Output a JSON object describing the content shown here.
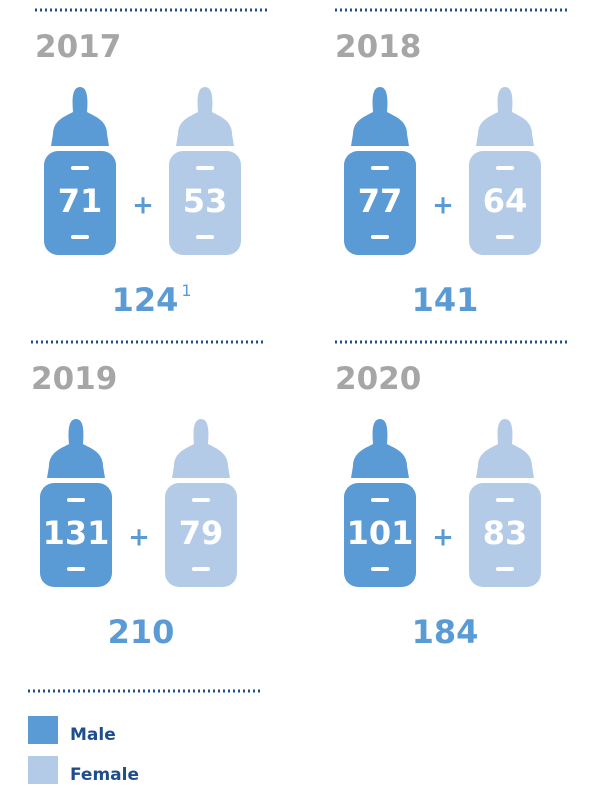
{
  "panels": [
    {
      "year": "2017",
      "male": "71",
      "female": "53",
      "total": "124",
      "note": "1"
    },
    {
      "year": "2018",
      "male": "77",
      "female": "64",
      "total": "141"
    },
    {
      "year": "2019",
      "male": "131",
      "female": "79",
      "total": "210"
    },
    {
      "year": "2020",
      "male": "101",
      "female": "83",
      "total": "184"
    }
  ],
  "plus": "+",
  "legend": [
    {
      "label": "Male",
      "color": "#5b9bd5"
    },
    {
      "label": "Female",
      "color": "#b4cbe8"
    }
  ]
}
